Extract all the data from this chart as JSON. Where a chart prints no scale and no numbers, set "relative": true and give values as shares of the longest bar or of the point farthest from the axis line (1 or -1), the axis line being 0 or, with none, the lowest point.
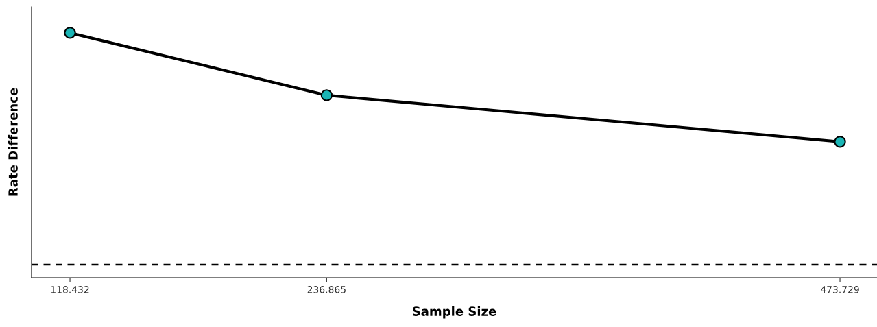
{
  "chart_data": {
    "type": "line",
    "xlabel": "Sample Size",
    "ylabel": "Rate Difference",
    "x": [
      118.432,
      236.865,
      473.729
    ],
    "series": [
      {
        "color": "#000000",
        "colors": [
          "#1ab5b5",
          "#1ab5b5",
          "#1ab5b5"
        ],
        "values": [
          1,
          0.745,
          0.555
        ]
      }
    ],
    "relative": true,
    "marker": "circle",
    "line_style": "solid",
    "xlim": [
      100.7,
      490.8
    ],
    "xticks": [
      118.432,
      236.865,
      473.729
    ],
    "tick_labels": "x",
    "grid": false,
    "legend": false,
    "ref_lines": [
      {
        "axis": "y",
        "value": 0.053,
        "color": "#000000",
        "line_style": "dashed"
      }
    ]
  }
}
